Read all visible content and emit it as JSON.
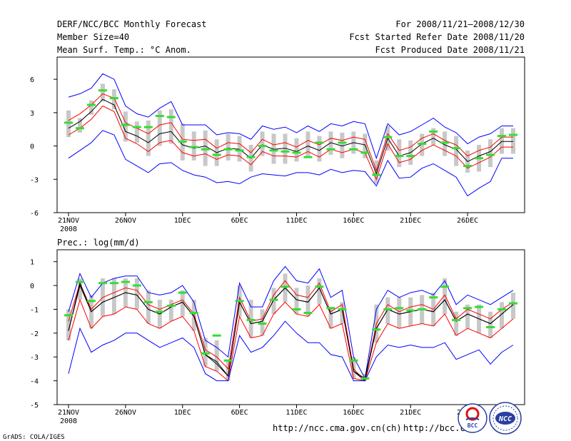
{
  "header": {
    "title": "DERF/NCC/BCC Monthly Forecast",
    "member_size": "Member Size=40",
    "variable": "Mean Surf. Temp.: °C Anom.",
    "period": "For 2008/11/21–2008/12/30",
    "started": "Fcst Started Refer Date 2008/11/20",
    "produced": "Fcst Produced Date 2008/11/21"
  },
  "footer": {
    "grads": "GrADS: COLA/IGES",
    "url1": "http://ncc.cma.gov.cn(ch)",
    "url2": "http://bcc.c",
    "logo1_text": "BCC",
    "logo2_text": "NCC"
  },
  "colors": {
    "ensemble_bar": "#c8c8c8",
    "spread_envelope": "#0000ff",
    "std_band": "#ff0000",
    "ensemble_mean": "#000000",
    "observation_marker": "#33dd33"
  },
  "chart_data": [
    {
      "type": "line",
      "id": "temp",
      "title": "Mean Surf. Temp.: °C Anom.",
      "x": "day index (0 = 2008/11/21 … 39 = 2008/12/30)",
      "xticks": [
        0,
        5,
        10,
        15,
        20,
        25,
        30,
        35
      ],
      "xtick_labels": [
        "21NOV",
        "26NOV",
        "1DEC",
        "6DEC",
        "11DEC",
        "16DEC",
        "21DEC",
        "26DEC"
      ],
      "xtick_sublabel": "2008",
      "ylim": [
        -6,
        8
      ],
      "yticks": [
        -6,
        -3,
        0,
        3,
        6
      ],
      "series": [
        {
          "name": "ensemble max",
          "color": "#0000ff",
          "values": [
            4.4,
            4.7,
            5.2,
            6.5,
            6.0,
            3.6,
            2.9,
            2.6,
            3.4,
            4.0,
            1.9,
            1.9,
            1.9,
            1.0,
            1.2,
            1.1,
            0.6,
            1.8,
            1.5,
            1.7,
            1.2,
            1.8,
            1.3,
            2.0,
            1.8,
            2.2,
            2.0,
            -1.1,
            2.0,
            1.0,
            1.3,
            1.9,
            2.5,
            1.7,
            1.2,
            0.2,
            0.8,
            1.1,
            1.8,
            1.8
          ]
        },
        {
          "name": "mean + std",
          "color": "#ff0000",
          "values": [
            2.3,
            2.9,
            3.7,
            4.7,
            4.3,
            2.1,
            1.6,
            1.1,
            1.9,
            2.1,
            0.6,
            0.5,
            0.6,
            -0.2,
            0.3,
            0.2,
            -0.6,
            0.6,
            0.1,
            0.3,
            -0.1,
            0.5,
            0.1,
            0.7,
            0.5,
            0.8,
            0.6,
            -2.2,
            1.1,
            -0.4,
            -0.1,
            0.7,
            1.1,
            0.5,
            0.1,
            -0.9,
            -0.4,
            -0.1,
            0.8,
            0.8
          ]
        },
        {
          "name": "ensemble mean",
          "color": "#000000",
          "values": [
            1.6,
            2.2,
            3.1,
            4.2,
            3.7,
            1.3,
            0.9,
            0.3,
            1.1,
            1.3,
            0.1,
            -0.2,
            0.0,
            -0.6,
            -0.2,
            -0.3,
            -1.1,
            0.1,
            -0.3,
            -0.2,
            -0.5,
            0.0,
            -0.4,
            0.3,
            0.0,
            0.3,
            0.1,
            -2.5,
            0.7,
            -0.9,
            -0.6,
            0.2,
            0.7,
            0.1,
            -0.3,
            -1.4,
            -0.9,
            -0.5,
            0.4,
            0.4
          ]
        },
        {
          "name": "mean - std",
          "color": "#ff0000",
          "values": [
            1.0,
            1.6,
            2.4,
            3.6,
            3.1,
            0.7,
            0.2,
            -0.5,
            0.3,
            0.5,
            -0.6,
            -0.9,
            -0.7,
            -1.2,
            -0.8,
            -0.9,
            -1.7,
            -0.5,
            -0.9,
            -0.9,
            -1.0,
            -0.5,
            -1.0,
            -0.3,
            -0.6,
            -0.3,
            -0.6,
            -3.0,
            0.2,
            -1.5,
            -1.2,
            -0.4,
            0.1,
            -0.4,
            -0.9,
            -2.0,
            -1.5,
            -1.0,
            -0.1,
            -0.1
          ]
        },
        {
          "name": "ensemble min",
          "color": "#0000ff",
          "values": [
            -1.1,
            -0.4,
            0.3,
            1.4,
            1.0,
            -1.2,
            -1.8,
            -2.4,
            -1.6,
            -1.5,
            -2.2,
            -2.6,
            -2.8,
            -3.3,
            -3.2,
            -3.4,
            -2.8,
            -2.5,
            -2.6,
            -2.7,
            -2.4,
            -2.4,
            -2.6,
            -2.1,
            -2.4,
            -2.2,
            -2.3,
            -3.6,
            -1.3,
            -2.9,
            -2.8,
            -2.0,
            -1.6,
            -2.2,
            -2.8,
            -4.5,
            -3.8,
            -3.2,
            -1.1,
            -1.1
          ]
        }
      ],
      "box_range": {
        "upper": [
          3.2,
          2.5,
          4.1,
          5.6,
          5.1,
          3.1,
          2.2,
          2.3,
          3.2,
          3.3,
          2.0,
          1.3,
          1.4,
          0.6,
          1.1,
          0.9,
          0.1,
          1.3,
          1.1,
          1.1,
          0.7,
          1.3,
          0.9,
          1.3,
          1.2,
          1.3,
          1.1,
          -1.3,
          1.8,
          0.6,
          0.5,
          1.1,
          1.6,
          1.3,
          0.9,
          -0.4,
          0.1,
          0.6,
          1.6,
          1.6
        ],
        "lower": [
          0.8,
          1.2,
          2.8,
          4.0,
          3.3,
          0.4,
          0.3,
          -0.9,
          0.0,
          0.2,
          -1.3,
          -1.3,
          -1.8,
          -1.8,
          -1.3,
          -1.4,
          -2.3,
          -0.9,
          -1.6,
          -1.6,
          -1.4,
          -0.9,
          -1.4,
          -0.8,
          -1.1,
          -0.7,
          -1.1,
          -3.4,
          -0.4,
          -1.9,
          -1.7,
          -0.9,
          0.1,
          -0.9,
          -1.8,
          -2.4,
          -2.3,
          -1.9,
          -0.7,
          -0.7
        ]
      },
      "observations": [
        2.1,
        1.6,
        3.7,
        5.0,
        4.3,
        1.9,
        1.7,
        1.7,
        2.7,
        2.6,
        0.4,
        -0.1,
        -0.3,
        -0.8,
        -0.3,
        -0.4,
        -1.0,
        0.0,
        -0.4,
        -0.5,
        -0.6,
        -1.0,
        0.3,
        -0.3,
        0.3,
        -0.3,
        -0.6,
        -2.6,
        0.8,
        -0.9,
        -0.9,
        0.2,
        1.3,
        0.3,
        -0.2,
        -1.8,
        -1.1,
        -0.8,
        0.9,
        1.0
      ]
    },
    {
      "type": "line",
      "id": "prec",
      "title": "Prec.: log(mm/d)",
      "x": "day index (0 = 2008/11/21 … 39 = 2008/12/30)",
      "xticks": [
        0,
        5,
        10,
        15,
        20,
        25,
        30,
        35
      ],
      "xtick_labels": [
        "21NOV",
        "26NOV",
        "1DEC",
        "6DEC",
        "11DEC",
        "16DEC",
        "21DEC",
        "26DEC"
      ],
      "xtick_sublabel": "2008",
      "ylim": [
        -5,
        1.5
      ],
      "yticks": [
        -5,
        -4,
        -3,
        -2,
        -1,
        0,
        1
      ],
      "series": [
        {
          "name": "ensemble max",
          "color": "#0000ff",
          "values": [
            -1.1,
            0.5,
            -0.5,
            0.1,
            0.3,
            0.4,
            0.4,
            -0.3,
            -0.4,
            -0.3,
            0.0,
            -0.7,
            -2.3,
            -2.6,
            -3.0,
            0.1,
            -0.9,
            -0.9,
            0.2,
            0.8,
            0.2,
            0.1,
            0.7,
            -0.5,
            -0.2,
            -3.0,
            -3.9,
            -1.0,
            -0.2,
            -0.5,
            -0.3,
            -0.2,
            -0.4,
            0.2,
            -0.8,
            -0.4,
            -0.6,
            -0.8,
            -0.5,
            -0.2
          ]
        },
        {
          "name": "mean + std",
          "color": "#ff0000",
          "values": [
            -1.5,
            0.1,
            -1.0,
            -0.5,
            -0.3,
            -0.1,
            -0.2,
            -0.8,
            -1.0,
            -0.8,
            -0.6,
            -1.2,
            -2.7,
            -3.0,
            -3.5,
            -0.5,
            -1.5,
            -1.4,
            -0.4,
            0.2,
            -0.4,
            -0.5,
            0.1,
            -1.1,
            -0.8,
            -3.5,
            -4.0,
            -1.6,
            -0.8,
            -1.1,
            -0.9,
            -0.8,
            -1.0,
            -0.4,
            -1.4,
            -1.0,
            -1.2,
            -1.4,
            -1.0,
            -0.7
          ]
        },
        {
          "name": "ensemble mean",
          "color": "#000000",
          "values": [
            -1.9,
            0.0,
            -1.1,
            -0.7,
            -0.5,
            -0.3,
            -0.4,
            -1.0,
            -1.2,
            -0.9,
            -0.7,
            -1.3,
            -2.9,
            -3.2,
            -3.8,
            -0.7,
            -1.6,
            -1.5,
            -0.6,
            -0.1,
            -0.6,
            -0.7,
            -0.1,
            -1.2,
            -1.0,
            -3.6,
            -4.0,
            -1.8,
            -1.0,
            -1.2,
            -1.1,
            -1.0,
            -1.1,
            -0.6,
            -1.5,
            -1.2,
            -1.4,
            -1.6,
            -1.2,
            -0.8
          ]
        },
        {
          "name": "mean - std",
          "color": "#ff0000",
          "values": [
            -2.3,
            -0.6,
            -1.8,
            -1.3,
            -1.2,
            -0.9,
            -1.0,
            -1.6,
            -1.8,
            -1.5,
            -1.3,
            -1.9,
            -3.4,
            -3.6,
            -4.0,
            -1.3,
            -2.2,
            -2.1,
            -1.2,
            -0.7,
            -1.2,
            -1.3,
            -0.8,
            -1.8,
            -1.6,
            -3.9,
            -4.0,
            -2.4,
            -1.6,
            -1.8,
            -1.7,
            -1.6,
            -1.7,
            -1.2,
            -2.1,
            -1.8,
            -2.0,
            -2.2,
            -1.8,
            -1.4
          ]
        },
        {
          "name": "ensemble min",
          "color": "#0000ff",
          "values": [
            -3.7,
            -1.8,
            -2.8,
            -2.5,
            -2.3,
            -2.0,
            -2.0,
            -2.3,
            -2.6,
            -2.4,
            -2.2,
            -2.6,
            -3.7,
            -4.0,
            -4.0,
            -2.1,
            -2.8,
            -2.6,
            -2.1,
            -1.5,
            -2.0,
            -2.4,
            -2.4,
            -2.9,
            -3.0,
            -4.0,
            -4.0,
            -3.0,
            -2.5,
            -2.6,
            -2.5,
            -2.6,
            -2.6,
            -2.4,
            -3.1,
            -2.9,
            -2.7,
            -3.3,
            -2.8,
            -2.5
          ]
        },
        {
          "name": "observed",
          "color": "#000000",
          "values": [
            -1.9,
            0.1,
            -1.1,
            -0.7,
            -0.5,
            -0.3,
            -0.4,
            -1.0,
            -1.2,
            -0.9,
            -0.7,
            -1.3,
            -2.9,
            -3.3,
            -3.8,
            -0.7,
            -1.6,
            -1.5,
            -0.6,
            -0.1,
            -0.6,
            -0.7,
            -0.1,
            -1.2,
            -1.0,
            -3.6,
            -3.9,
            -1.8,
            -1.0,
            -1.2,
            -1.1,
            -1.0,
            -1.1,
            -0.6,
            -1.5,
            -1.2,
            -1.4,
            -1.6,
            -1.2,
            -0.8
          ]
        }
      ],
      "box_range": {
        "upper": [
          -1.0,
          0.3,
          -0.4,
          0.3,
          0.3,
          0.3,
          0.3,
          -0.2,
          -0.6,
          -0.6,
          -0.2,
          -0.6,
          -2.2,
          -2.3,
          -3.1,
          0.0,
          -0.6,
          -1.0,
          -0.1,
          0.5,
          -0.1,
          0.0,
          0.3,
          -0.9,
          -0.7,
          -3.0,
          -3.7,
          -0.8,
          -0.5,
          -0.5,
          -0.5,
          -0.4,
          -0.3,
          0.3,
          -1.1,
          -0.8,
          -0.8,
          -1.1,
          -0.7,
          -0.3
        ]
      },
      "observations": [
        -1.25,
        0.15,
        -0.65,
        0.1,
        0.1,
        0.15,
        0.0,
        -0.7,
        -1.1,
        -0.85,
        -0.3,
        -1.15,
        -2.85,
        -2.1,
        -3.15,
        -0.65,
        -1.45,
        -1.6,
        -0.6,
        -0.05,
        -1.0,
        -1.15,
        -0.05,
        -0.95,
        -1.0,
        -3.15,
        -3.9,
        -1.85,
        -1.0,
        -0.95,
        -1.05,
        -1.0,
        -0.5,
        -0.05,
        -1.45,
        -0.95,
        -0.9,
        -1.75,
        -1.0,
        -0.75
      ]
    }
  ]
}
